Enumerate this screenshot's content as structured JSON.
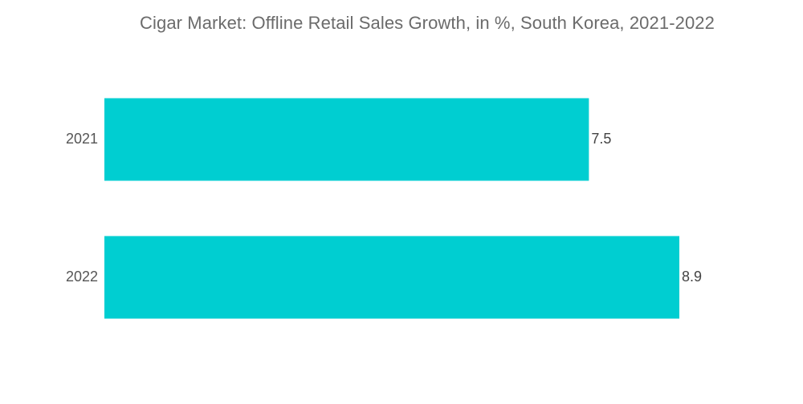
{
  "chart_data": {
    "type": "bar",
    "orientation": "horizontal",
    "title": "Cigar Market: Offline Retail Sales Growth, in %, South Korea, 2021-2022",
    "categories": [
      "2021",
      "2022"
    ],
    "values": [
      7.5,
      8.9
    ],
    "value_labels": [
      "7.5",
      "8.9"
    ],
    "xlim": [
      0,
      8.9
    ],
    "grid": false,
    "legend": "none",
    "colors": {
      "bar": "#00CED1",
      "title": "#6b6b6b",
      "labels": "#555555"
    }
  }
}
